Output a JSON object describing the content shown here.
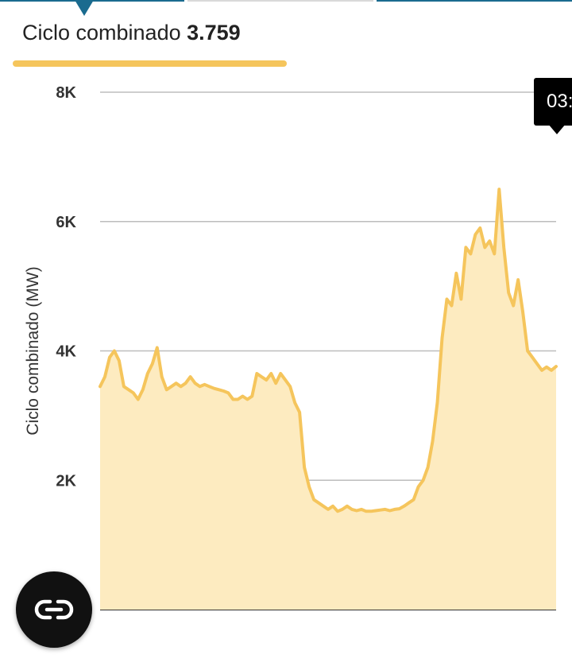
{
  "header": {
    "technology_label": "Ciclo combinado",
    "technology_value": "3.759"
  },
  "tooltip": {
    "text": "03:"
  },
  "colors": {
    "series": "#f5c55c",
    "fill": "#fdebc0",
    "accent": "#1a6b8f"
  },
  "fab": {
    "icon": "link-icon"
  },
  "chart_data": {
    "type": "area",
    "xlabel": "",
    "ylabel": "Ciclo combinado (MW)",
    "ylim": [
      0,
      8000
    ],
    "yticks": [
      {
        "value": 2000,
        "label": "2K"
      },
      {
        "value": 4000,
        "label": "4K"
      },
      {
        "value": 6000,
        "label": "6K"
      },
      {
        "value": 8000,
        "label": "8K"
      }
    ],
    "grid": true,
    "series": [
      {
        "values": [
          3450,
          3600,
          3900,
          4000,
          3850,
          3450,
          3400,
          3350,
          3250,
          3400,
          3650,
          3800,
          4050,
          3600,
          3400,
          3450,
          3500,
          3450,
          3500,
          3600,
          3500,
          3450,
          3480,
          3450,
          3420,
          3400,
          3380,
          3350,
          3250,
          3250,
          3300,
          3250,
          3300,
          3650,
          3600,
          3550,
          3650,
          3500,
          3650,
          3550,
          3450,
          3200,
          3050,
          2200,
          1900,
          1700,
          1650,
          1600,
          1550,
          1600,
          1520,
          1550,
          1600,
          1550,
          1530,
          1550,
          1520,
          1520,
          1530,
          1540,
          1550,
          1530,
          1550,
          1560,
          1600,
          1650,
          1700,
          1900,
          2000,
          2200,
          2600,
          3200,
          4200,
          4800,
          4700,
          5200,
          4800,
          5600,
          5500,
          5800,
          5900,
          5600,
          5700,
          5500,
          6500,
          5600,
          4900,
          4700,
          5100,
          4600,
          4000,
          3900,
          3800,
          3700,
          3750,
          3700,
          3759
        ]
      }
    ]
  }
}
